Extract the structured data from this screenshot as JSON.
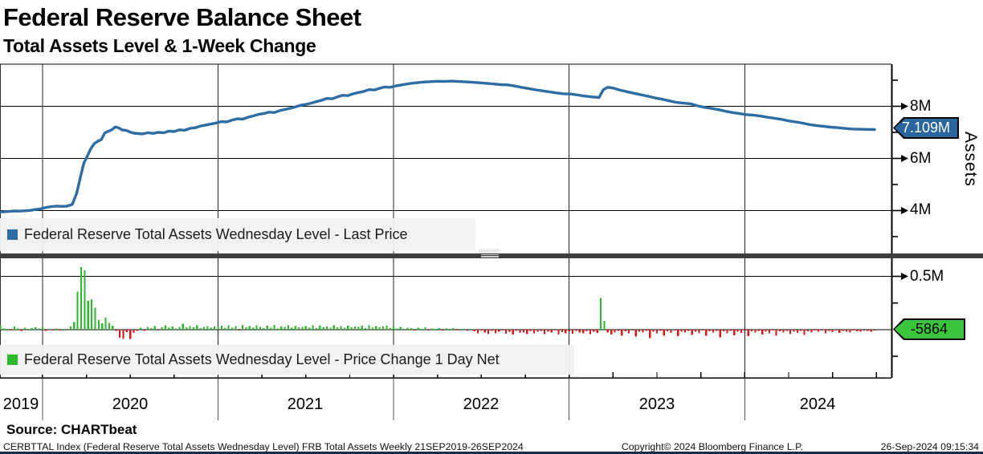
{
  "header": {
    "title": "Federal Reserve Balance Sheet",
    "subtitle": "Total Assets Level & 1-Week Change"
  },
  "top_panel": {
    "legend": "Federal Reserve Total Assets Wednesday Level - Last Price",
    "axis_label": "Assets",
    "last_price_badge": "7.109M",
    "y_tick_labels": [
      "8M",
      "6M",
      "4M"
    ]
  },
  "bottom_panel": {
    "legend": "Federal Reserve Total Assets Wednesday Level - Price Change 1 Day Net",
    "y_tick_labels": [
      "0.5M"
    ],
    "last_change_badge": "-5864"
  },
  "x_axis": {
    "years": [
      "2019",
      "2020",
      "2021",
      "2022",
      "2023",
      "2024"
    ]
  },
  "source": {
    "label": "Source: CHARTbeat"
  },
  "footer": {
    "left": "CERBTTAL Index (Federal Reserve Total Assets Wednesday Level) FRB Total Assets  Weekly 21SEP2019-26SEP2024",
    "center": "Copyright© 2024 Bloomberg Finance L.P.",
    "right": "26-Sep-2024 09:15:34"
  },
  "colors": {
    "line": "#2e6da4",
    "bar_up": "#2eb82e",
    "bar_down": "#e01212",
    "badge_price": "#2a659e",
    "badge_change": "#3ac53a",
    "legend_bg": "#f1f1f1",
    "grid": "#000000",
    "divider": "#3e3e3e"
  },
  "chart_data": [
    {
      "type": "line",
      "name": "Federal Reserve Total Assets Wednesday Level - Last Price",
      "units": "M",
      "x_range": [
        "21SEP2019",
        "26SEP2024"
      ],
      "ylim": [
        2.4,
        9.6
      ],
      "y_ticks_major": [
        8,
        6,
        4
      ],
      "y_ticks_minor": [
        9,
        7,
        5,
        3
      ],
      "last_value": 7.109,
      "last_label": "7.109M",
      "legend_position": "bottom-left overlay",
      "grid": true,
      "points": [
        [
          2019.758,
          3.945
        ],
        [
          2019.78,
          3.952
        ],
        [
          2019.81,
          3.966
        ],
        [
          2019.84,
          3.985
        ],
        [
          2019.87,
          3.978
        ],
        [
          2019.9,
          3.992
        ],
        [
          2019.93,
          4.005
        ],
        [
          2019.96,
          4.04
        ],
        [
          2019.99,
          4.066
        ],
        [
          2020.02,
          4.12
        ],
        [
          2020.05,
          4.15
        ],
        [
          2020.08,
          4.172
        ],
        [
          2020.11,
          4.159
        ],
        [
          2020.14,
          4.17
        ],
        [
          2020.17,
          4.24
        ],
        [
          2020.195,
          4.67
        ],
        [
          2020.215,
          5.25
        ],
        [
          2020.235,
          5.81
        ],
        [
          2020.255,
          6.08
        ],
        [
          2020.275,
          6.37
        ],
        [
          2020.295,
          6.57
        ],
        [
          2020.315,
          6.66
        ],
        [
          2020.335,
          6.72
        ],
        [
          2020.355,
          6.98
        ],
        [
          2020.375,
          7.04
        ],
        [
          2020.395,
          7.1
        ],
        [
          2020.415,
          7.21
        ],
        [
          2020.435,
          7.17
        ],
        [
          2020.455,
          7.09
        ],
        [
          2020.475,
          7.08
        ],
        [
          2020.5,
          7.01
        ],
        [
          2020.52,
          6.97
        ],
        [
          2020.545,
          6.955
        ],
        [
          2020.57,
          6.94
        ],
        [
          2020.6,
          6.985
        ],
        [
          2020.63,
          6.96
        ],
        [
          2020.66,
          7.0
        ],
        [
          2020.69,
          6.98
        ],
        [
          2020.72,
          7.05
        ],
        [
          2020.75,
          7.03
        ],
        [
          2020.78,
          7.1
        ],
        [
          2020.81,
          7.08
        ],
        [
          2020.84,
          7.15
        ],
        [
          2020.87,
          7.18
        ],
        [
          2020.9,
          7.24
        ],
        [
          2020.93,
          7.28
        ],
        [
          2020.96,
          7.32
        ],
        [
          2020.99,
          7.36
        ],
        [
          2021.02,
          7.415
        ],
        [
          2021.05,
          7.4
        ],
        [
          2021.08,
          7.47
        ],
        [
          2021.11,
          7.52
        ],
        [
          2021.14,
          7.505
        ],
        [
          2021.17,
          7.58
        ],
        [
          2021.2,
          7.63
        ],
        [
          2021.23,
          7.69
        ],
        [
          2021.26,
          7.72
        ],
        [
          2021.29,
          7.775
        ],
        [
          2021.32,
          7.76
        ],
        [
          2021.35,
          7.83
        ],
        [
          2021.38,
          7.88
        ],
        [
          2021.41,
          7.92
        ],
        [
          2021.44,
          7.975
        ],
        [
          2021.47,
          8.04
        ],
        [
          2021.5,
          8.07
        ],
        [
          2021.53,
          8.12
        ],
        [
          2021.56,
          8.18
        ],
        [
          2021.59,
          8.23
        ],
        [
          2021.62,
          8.3
        ],
        [
          2021.65,
          8.285
        ],
        [
          2021.68,
          8.36
        ],
        [
          2021.71,
          8.42
        ],
        [
          2021.74,
          8.41
        ],
        [
          2021.77,
          8.48
        ],
        [
          2021.8,
          8.53
        ],
        [
          2021.83,
          8.57
        ],
        [
          2021.86,
          8.64
        ],
        [
          2021.89,
          8.625
        ],
        [
          2021.92,
          8.69
        ],
        [
          2021.95,
          8.74
        ],
        [
          2021.98,
          8.725
        ],
        [
          2022.01,
          8.78
        ],
        [
          2022.05,
          8.825
        ],
        [
          2022.09,
          8.87
        ],
        [
          2022.13,
          8.9
        ],
        [
          2022.17,
          8.93
        ],
        [
          2022.21,
          8.945
        ],
        [
          2022.25,
          8.96
        ],
        [
          2022.29,
          8.95
        ],
        [
          2022.33,
          8.965
        ],
        [
          2022.37,
          8.95
        ],
        [
          2022.41,
          8.935
        ],
        [
          2022.45,
          8.92
        ],
        [
          2022.49,
          8.9
        ],
        [
          2022.53,
          8.88
        ],
        [
          2022.57,
          8.855
        ],
        [
          2022.61,
          8.83
        ],
        [
          2022.65,
          8.82
        ],
        [
          2022.69,
          8.78
        ],
        [
          2022.73,
          8.725
        ],
        [
          2022.77,
          8.68
        ],
        [
          2022.81,
          8.63
        ],
        [
          2022.85,
          8.59
        ],
        [
          2022.89,
          8.55
        ],
        [
          2022.93,
          8.51
        ],
        [
          2022.97,
          8.48
        ],
        [
          2023.01,
          8.47
        ],
        [
          2023.05,
          8.43
        ],
        [
          2023.09,
          8.39
        ],
        [
          2023.13,
          8.36
        ],
        [
          2023.17,
          8.34
        ],
        [
          2023.195,
          8.64
        ],
        [
          2023.22,
          8.73
        ],
        [
          2023.25,
          8.7
        ],
        [
          2023.29,
          8.62
        ],
        [
          2023.33,
          8.56
        ],
        [
          2023.37,
          8.5
        ],
        [
          2023.41,
          8.44
        ],
        [
          2023.45,
          8.385
        ],
        [
          2023.49,
          8.32
        ],
        [
          2023.53,
          8.27
        ],
        [
          2023.57,
          8.21
        ],
        [
          2023.61,
          8.15
        ],
        [
          2023.65,
          8.12
        ],
        [
          2023.69,
          8.1
        ],
        [
          2023.73,
          8.02
        ],
        [
          2023.77,
          7.96
        ],
        [
          2023.81,
          7.92
        ],
        [
          2023.85,
          7.87
        ],
        [
          2023.89,
          7.81
        ],
        [
          2023.93,
          7.76
        ],
        [
          2023.97,
          7.72
        ],
        [
          2024.01,
          7.68
        ],
        [
          2024.05,
          7.66
        ],
        [
          2024.09,
          7.625
        ],
        [
          2024.13,
          7.58
        ],
        [
          2024.17,
          7.54
        ],
        [
          2024.21,
          7.5
        ],
        [
          2024.25,
          7.44
        ],
        [
          2024.29,
          7.4
        ],
        [
          2024.33,
          7.355
        ],
        [
          2024.37,
          7.3
        ],
        [
          2024.41,
          7.26
        ],
        [
          2024.45,
          7.23
        ],
        [
          2024.49,
          7.2
        ],
        [
          2024.53,
          7.18
        ],
        [
          2024.57,
          7.15
        ],
        [
          2024.61,
          7.13
        ],
        [
          2024.65,
          7.12
        ],
        [
          2024.69,
          7.115
        ],
        [
          2024.74,
          7.109
        ]
      ]
    },
    {
      "type": "bar",
      "name": "Federal Reserve Total Assets Wednesday Level - Price Change 1 Day Net",
      "units": "M",
      "ylim": [
        -0.44,
        0.67
      ],
      "y_ticks_major": [
        0.5
      ],
      "y_ticks_minor": [
        0.25,
        -0.25
      ],
      "zero_line": 0,
      "last_value": -0.005864,
      "last_label": "-5864",
      "legend_position": "bottom-left overlay",
      "t0": 2019.76,
      "dt": 0.02,
      "values": [
        0.045,
        0.01,
        0.008,
        -0.004,
        0.03,
        0.012,
        -0.01,
        0.02,
        0.009,
        0.016,
        0.021,
        0.013,
        0.023,
        -0.012,
        0.006,
        -0.008,
        0.011,
        -0.005,
        0.004,
        0.009,
        0.03,
        0.07,
        0.356,
        0.586,
        0.557,
        0.272,
        0.285,
        0.205,
        0.091,
        0.062,
        0.112,
        0.065,
        0.038,
        -0.012,
        -0.074,
        -0.088,
        -0.021,
        -0.085,
        -0.031,
        -0.012,
        0.02,
        -0.01,
        0.028,
        0.015,
        0.035,
        -0.008,
        0.022,
        0.04,
        0.018,
        0.03,
        0.012,
        0.025,
        0.055,
        0.018,
        0.032,
        0.022,
        0.04,
        0.015,
        0.028,
        0.035,
        0.02,
        0.03,
        0.025,
        0.038,
        0.015,
        0.042,
        0.02,
        0.033,
        -0.006,
        0.045,
        0.022,
        0.035,
        0.018,
        0.04,
        0.025,
        0.015,
        0.038,
        0.02,
        0.045,
        0.012,
        0.03,
        0.025,
        0.04,
        0.018,
        0.035,
        0.022,
        0.028,
        0.032,
        0.02,
        0.042,
        0.016,
        0.036,
        0.024,
        0.03,
        0.019,
        0.041,
        0.023,
        0.034,
        0.017,
        0.039,
        0.021,
        0.031,
        0.026,
        0.036,
        0.014,
        0.043,
        0.02,
        0.033,
        0.024,
        0.029,
        0.037,
        0.016,
        0.03,
        0.012,
        0.025,
        0.008,
        0.02,
        0.015,
        -0.005,
        0.018,
        0.004,
        0.022,
        -0.008,
        0.012,
        0.006,
        0.016,
        -0.004,
        0.01,
        0.002,
        0.014,
        -0.006,
        0.008,
        0.003,
        -0.01,
        0.005,
        -0.015,
        -0.032,
        -0.006,
        -0.028,
        -0.041,
        -0.012,
        -0.035,
        -0.018,
        -0.008,
        -0.038,
        -0.022,
        -0.045,
        -0.01,
        -0.03,
        -0.025,
        -0.042,
        -0.015,
        -0.035,
        -0.02,
        -0.012,
        -0.04,
        -0.018,
        -0.028,
        -0.008,
        -0.044,
        -0.022,
        -0.032,
        -0.014,
        -0.038,
        -0.01,
        -0.026,
        -0.035,
        -0.016,
        -0.042,
        -0.02,
        -0.03,
        0.297,
        0.082,
        -0.028,
        -0.045,
        -0.025,
        -0.01,
        -0.058,
        -0.015,
        -0.032,
        -0.008,
        -0.065,
        -0.018,
        -0.028,
        -0.012,
        -0.08,
        -0.02,
        -0.035,
        -0.01,
        -0.055,
        -0.015,
        -0.03,
        -0.006,
        -0.062,
        -0.018,
        -0.025,
        -0.012,
        -0.048,
        -0.02,
        -0.033,
        -0.008,
        -0.058,
        -0.016,
        -0.028,
        -0.01,
        -0.07,
        -0.015,
        -0.035,
        -0.012,
        -0.052,
        -0.018,
        -0.03,
        -0.008,
        -0.06,
        -0.014,
        -0.026,
        -0.01,
        -0.045,
        -0.02,
        -0.032,
        -0.006,
        -0.055,
        -0.016,
        -0.028,
        -0.012,
        -0.04,
        -0.018,
        -0.03,
        -0.01,
        -0.05,
        -0.015,
        -0.025,
        -0.008,
        -0.02,
        -0.008,
        -0.035,
        -0.012,
        -0.022,
        -0.006,
        -0.03,
        -0.01,
        -0.018,
        -0.025,
        -0.008,
        -0.015,
        -0.02,
        -0.005,
        -0.012,
        -0.018,
        -0.0059
      ]
    }
  ]
}
